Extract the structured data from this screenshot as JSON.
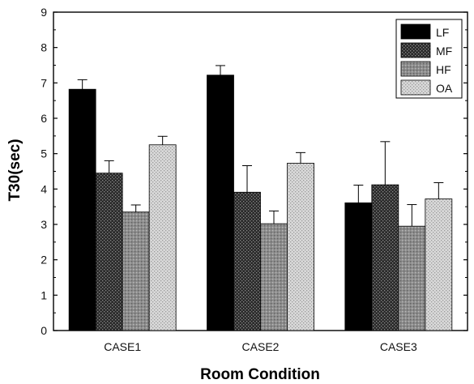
{
  "chart_data": {
    "type": "bar",
    "categories": [
      "CASE1",
      "CASE2",
      "CASE3"
    ],
    "series": [
      {
        "name": "LF",
        "values": [
          6.82,
          7.22,
          3.61
        ],
        "errors": [
          0.27,
          0.27,
          0.5
        ]
      },
      {
        "name": "MF",
        "values": [
          4.45,
          3.91,
          4.12
        ],
        "errors": [
          0.35,
          0.75,
          1.22
        ]
      },
      {
        "name": "HF",
        "values": [
          3.35,
          3.02,
          2.95
        ],
        "errors": [
          0.2,
          0.36,
          0.61
        ]
      },
      {
        "name": "OA",
        "values": [
          5.25,
          4.73,
          3.72
        ],
        "errors": [
          0.24,
          0.3,
          0.46
        ]
      }
    ],
    "title": "",
    "xlabel": "Room Condition",
    "ylabel": "T30(sec)",
    "ylim": [
      0,
      9
    ],
    "yticks": [
      "0",
      "1",
      "2",
      "3",
      "4",
      "5",
      "6",
      "7",
      "8",
      "9"
    ],
    "grid": false,
    "legend_position": "top-right",
    "error_bars": true
  }
}
